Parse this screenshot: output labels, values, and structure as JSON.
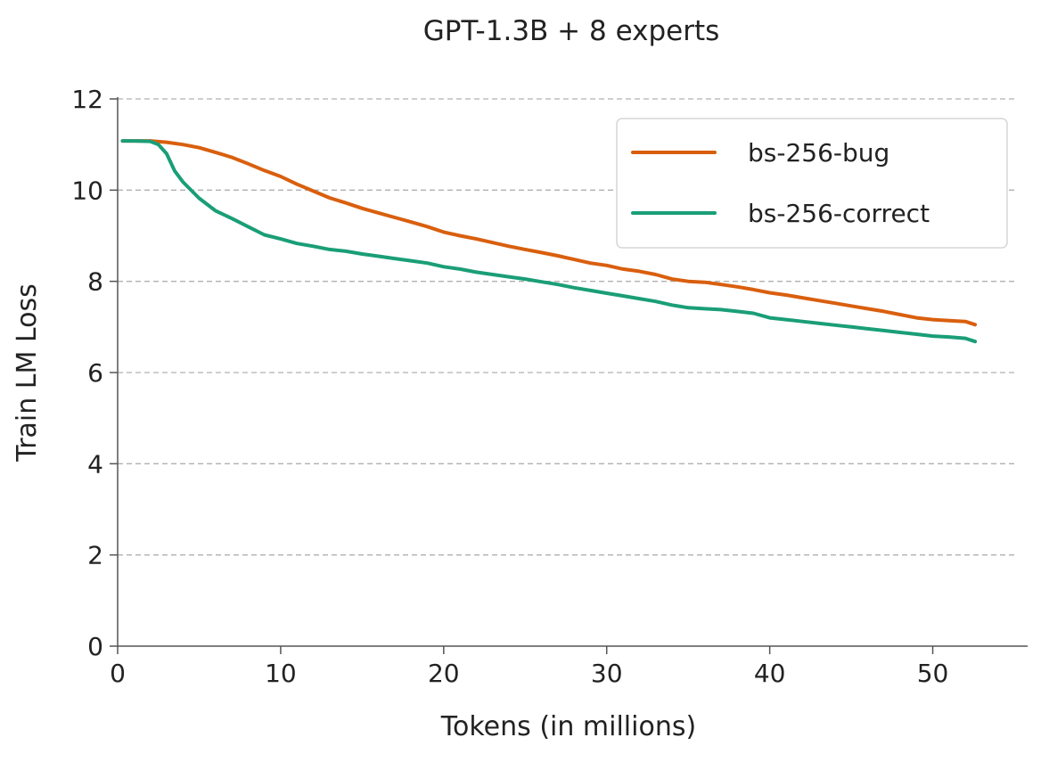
{
  "chart_data": {
    "type": "line",
    "title": "GPT-1.3B + 8 experts",
    "xlabel": "Tokens (in millions)",
    "ylabel": "Train LM Loss",
    "xlim": [
      0,
      55
    ],
    "ylim": [
      0,
      12
    ],
    "xticks": [
      0,
      10,
      20,
      30,
      40,
      50
    ],
    "yticks": [
      0,
      2,
      4,
      6,
      8,
      10,
      12
    ],
    "grid": "horizontal dashed",
    "legend_position": "top-right",
    "series": [
      {
        "name": "bs-256-bug",
        "color": "#d95f0e",
        "x": [
          0.3,
          1,
          2,
          3,
          4,
          5,
          6,
          7,
          8,
          9,
          10,
          11,
          12,
          13,
          14,
          15,
          16,
          17,
          18,
          19,
          20,
          21,
          22,
          23,
          24,
          25,
          26,
          27,
          28,
          29,
          30,
          31,
          32,
          33,
          34,
          35,
          36,
          37,
          38,
          39,
          40,
          41,
          42,
          43,
          44,
          45,
          46,
          47,
          48,
          49,
          50,
          51,
          52,
          52.6
        ],
        "values": [
          11.08,
          11.08,
          11.08,
          11.05,
          11.0,
          10.93,
          10.83,
          10.72,
          10.58,
          10.43,
          10.3,
          10.13,
          9.98,
          9.83,
          9.72,
          9.6,
          9.5,
          9.4,
          9.3,
          9.2,
          9.08,
          9.0,
          8.93,
          8.85,
          8.77,
          8.7,
          8.63,
          8.56,
          8.48,
          8.4,
          8.35,
          8.27,
          8.22,
          8.15,
          8.05,
          8.0,
          7.98,
          7.93,
          7.88,
          7.82,
          7.75,
          7.7,
          7.64,
          7.58,
          7.52,
          7.46,
          7.4,
          7.34,
          7.27,
          7.2,
          7.16,
          7.14,
          7.12,
          7.05
        ]
      },
      {
        "name": "bs-256-correct",
        "color": "#1a9e77",
        "x": [
          0.3,
          1,
          2,
          2.5,
          3,
          3.5,
          4,
          5,
          6,
          7,
          8,
          9,
          10,
          11,
          12,
          13,
          14,
          15,
          16,
          17,
          18,
          19,
          20,
          21,
          22,
          23,
          24,
          25,
          26,
          27,
          28,
          29,
          30,
          31,
          32,
          33,
          34,
          35,
          36,
          37,
          38,
          39,
          40,
          41,
          42,
          43,
          44,
          45,
          46,
          47,
          48,
          49,
          50,
          51,
          52,
          52.6
        ],
        "values": [
          11.08,
          11.08,
          11.07,
          11.0,
          10.8,
          10.42,
          10.18,
          9.82,
          9.55,
          9.38,
          9.2,
          9.02,
          8.93,
          8.83,
          8.77,
          8.7,
          8.66,
          8.6,
          8.55,
          8.5,
          8.45,
          8.4,
          8.32,
          8.27,
          8.2,
          8.15,
          8.1,
          8.05,
          7.99,
          7.93,
          7.86,
          7.8,
          7.74,
          7.68,
          7.62,
          7.56,
          7.48,
          7.42,
          7.4,
          7.38,
          7.34,
          7.3,
          7.2,
          7.16,
          7.12,
          7.08,
          7.04,
          7.0,
          6.96,
          6.92,
          6.88,
          6.84,
          6.8,
          6.78,
          6.75,
          6.68
        ]
      }
    ]
  }
}
